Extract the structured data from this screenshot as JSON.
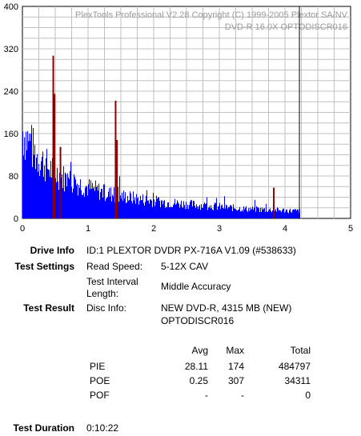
{
  "chart_data": {
    "type": "bar",
    "header": {
      "line1": "PlexTools Professional V2.28 Copyright (C) 1999-2005 Plextor SA/NV",
      "line2": "DVD-R    16.0X    OPTODISCR016"
    },
    "xlim": [
      0,
      5
    ],
    "ylim": [
      0,
      400
    ],
    "x_ticks": [
      "0",
      "1",
      "2",
      "3",
      "4",
      "5"
    ],
    "y_ticks": [
      "0",
      "80",
      "160",
      "240",
      "320",
      "400"
    ],
    "grid": true,
    "end_marker_x": 4.22,
    "colors": {
      "pie": "#0000ff",
      "poe": "#8b0000",
      "marker": "#000000",
      "grid": "#c0c0c0",
      "header_text": "#9a9a9a"
    },
    "series": [
      {
        "key": "pie",
        "x": [
          0.0,
          0.2,
          0.4,
          0.6,
          0.8,
          1.0,
          1.2,
          1.4,
          1.6,
          1.8,
          2.0,
          2.2,
          2.4,
          2.6,
          2.8,
          3.0,
          3.2,
          3.4,
          3.6,
          3.8,
          4.0,
          4.2
        ],
        "values": [
          165,
          120,
          95,
          78,
          68,
          58,
          50,
          44,
          40,
          36,
          33,
          30,
          28,
          26,
          24,
          22,
          20,
          18,
          17,
          16,
          15,
          14
        ]
      },
      {
        "key": "poe",
        "x": [
          0.47,
          0.49,
          0.58,
          1.42,
          1.44,
          3.83
        ],
        "values": [
          307,
          235,
          135,
          222,
          148,
          58
        ]
      }
    ]
  },
  "drive_info": {
    "label": "Drive Info",
    "value": "ID:1 PLEXTOR DVDR PX-716A V1.09 (#538633)"
  },
  "test_settings": {
    "label": "Test Settings",
    "read_speed_label": "Read Speed:",
    "read_speed_value": "5-12X CAV",
    "interval_label_1": "Test Interval",
    "interval_label_2": "Length:",
    "interval_value": "Middle Accuracy"
  },
  "test_result": {
    "label": "Test Result",
    "disc_info_label": "Disc Info:",
    "disc_info_line1": "NEW DVD-R, 4315 MB (NEW)",
    "disc_info_line2": "OPTODISCR016"
  },
  "stats": {
    "headers": [
      "Avg",
      "Max",
      "Total"
    ],
    "rows": [
      {
        "name": "PIE",
        "avg": "28.11",
        "max": "174",
        "total": "484797"
      },
      {
        "name": "POE",
        "avg": "0.25",
        "max": "307",
        "total": "34311"
      },
      {
        "name": "POF",
        "avg": "-",
        "max": "-",
        "total": "0"
      }
    ]
  },
  "duration": {
    "label": "Test Duration",
    "value": "0:10:22"
  }
}
